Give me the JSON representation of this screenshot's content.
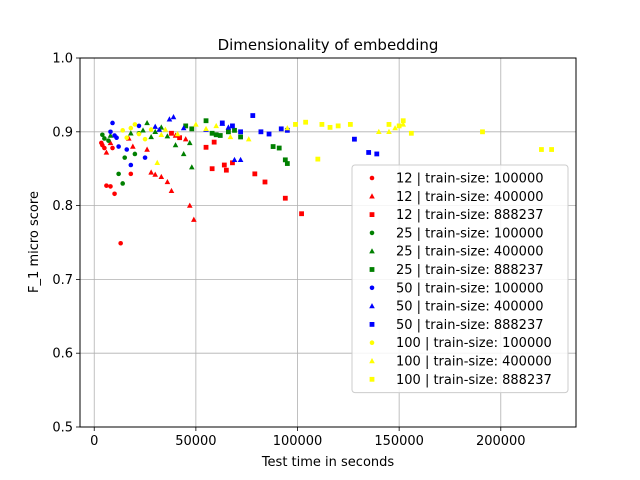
{
  "chart_data": {
    "type": "scatter",
    "title": "Dimensionality of embedding",
    "xlabel": "Test time in seconds",
    "ylabel": "F_1 micro score",
    "xlim": [
      -7000,
      237000
    ],
    "ylim": [
      0.5,
      1.0
    ],
    "xticks": [
      0,
      50000,
      100000,
      150000,
      200000
    ],
    "xtick_labels": [
      "0",
      "50000",
      "100000",
      "150000",
      "200000"
    ],
    "yticks": [
      0.5,
      0.6,
      0.7,
      0.8,
      0.9,
      1.0
    ],
    "ytick_labels": [
      "0.5",
      "0.6",
      "0.7",
      "0.8",
      "0.9",
      "1.0"
    ],
    "grid": true,
    "legend_position": "lower-right",
    "series": [
      {
        "name": "12 | train-size: 100000",
        "color": "#ff0000",
        "marker": "circle",
        "points": [
          [
            3500,
            0.885
          ],
          [
            4000,
            0.882
          ],
          [
            5000,
            0.878
          ],
          [
            6000,
            0.827
          ],
          [
            8000,
            0.826
          ],
          [
            9000,
            0.878
          ],
          [
            10000,
            0.816
          ],
          [
            13000,
            0.749
          ],
          [
            18000,
            0.843
          ]
        ]
      },
      {
        "name": "12 | train-size: 400000",
        "color": "#ff0000",
        "marker": "triangle",
        "points": [
          [
            6000,
            0.872
          ],
          [
            8000,
            0.885
          ],
          [
            17000,
            0.891
          ],
          [
            19000,
            0.88
          ],
          [
            26000,
            0.876
          ],
          [
            28000,
            0.845
          ],
          [
            30000,
            0.842
          ],
          [
            33000,
            0.839
          ],
          [
            36000,
            0.832
          ],
          [
            38000,
            0.82
          ],
          [
            40000,
            0.895
          ],
          [
            45000,
            0.89
          ],
          [
            47000,
            0.8
          ],
          [
            49000,
            0.781
          ]
        ]
      },
      {
        "name": "12 | train-size: 888237",
        "color": "#ff0000",
        "marker": "square",
        "points": [
          [
            38000,
            0.898
          ],
          [
            42000,
            0.892
          ],
          [
            55000,
            0.879
          ],
          [
            58000,
            0.85
          ],
          [
            59000,
            0.886
          ],
          [
            64000,
            0.855
          ],
          [
            65000,
            0.848
          ],
          [
            68000,
            0.858
          ],
          [
            79000,
            0.843
          ],
          [
            84000,
            0.832
          ],
          [
            94000,
            0.81
          ],
          [
            102000,
            0.789
          ]
        ]
      },
      {
        "name": "25 | train-size: 100000",
        "color": "#008000",
        "marker": "circle",
        "points": [
          [
            4000,
            0.896
          ],
          [
            5000,
            0.891
          ],
          [
            7000,
            0.888
          ],
          [
            12000,
            0.843
          ],
          [
            14000,
            0.83
          ],
          [
            15000,
            0.865
          ],
          [
            20000,
            0.87
          ],
          [
            22000,
            0.898
          ]
        ]
      },
      {
        "name": "25 | train-size: 400000",
        "color": "#008000",
        "marker": "triangle",
        "points": [
          [
            8000,
            0.895
          ],
          [
            18000,
            0.898
          ],
          [
            24000,
            0.902
          ],
          [
            26000,
            0.912
          ],
          [
            28000,
            0.893
          ],
          [
            30000,
            0.9
          ],
          [
            33000,
            0.906
          ],
          [
            36000,
            0.894
          ],
          [
            40000,
            0.882
          ],
          [
            44000,
            0.87
          ],
          [
            47000,
            0.885
          ],
          [
            48000,
            0.852
          ]
        ]
      },
      {
        "name": "25 | train-size: 888237",
        "color": "#008000",
        "marker": "square",
        "points": [
          [
            45000,
            0.908
          ],
          [
            48000,
            0.904
          ],
          [
            55000,
            0.915
          ],
          [
            58000,
            0.898
          ],
          [
            60000,
            0.896
          ],
          [
            62000,
            0.895
          ],
          [
            66000,
            0.9
          ],
          [
            69000,
            0.902
          ],
          [
            72000,
            0.893
          ],
          [
            88000,
            0.88
          ],
          [
            91000,
            0.878
          ],
          [
            94000,
            0.862
          ],
          [
            95000,
            0.857
          ]
        ]
      },
      {
        "name": "50 | train-size: 100000",
        "color": "#0000ff",
        "marker": "circle",
        "points": [
          [
            8000,
            0.9
          ],
          [
            9000,
            0.912
          ],
          [
            10000,
            0.895
          ],
          [
            11000,
            0.892
          ],
          [
            12000,
            0.88
          ],
          [
            16000,
            0.876
          ],
          [
            18000,
            0.855
          ],
          [
            22000,
            0.908
          ],
          [
            25000,
            0.865
          ]
        ]
      },
      {
        "name": "50 | train-size: 400000",
        "color": "#0000ff",
        "marker": "triangle",
        "points": [
          [
            30000,
            0.907
          ],
          [
            32000,
            0.903
          ],
          [
            37000,
            0.917
          ],
          [
            39000,
            0.92
          ],
          [
            44000,
            0.905
          ],
          [
            55000,
            0.903
          ],
          [
            63000,
            0.911
          ],
          [
            66000,
            0.906
          ],
          [
            69000,
            0.862
          ],
          [
            72000,
            0.862
          ]
        ]
      },
      {
        "name": "50 | train-size: 888237",
        "color": "#0000ff",
        "marker": "square",
        "points": [
          [
            63000,
            0.912
          ],
          [
            68000,
            0.908
          ],
          [
            72000,
            0.9
          ],
          [
            78000,
            0.922
          ],
          [
            82000,
            0.9
          ],
          [
            86000,
            0.897
          ],
          [
            92000,
            0.904
          ],
          [
            95000,
            0.902
          ],
          [
            128000,
            0.89
          ],
          [
            135000,
            0.872
          ],
          [
            139000,
            0.87
          ]
        ]
      },
      {
        "name": "100 | train-size: 100000",
        "color": "#ffff00",
        "marker": "circle",
        "points": [
          [
            14000,
            0.902
          ],
          [
            16000,
            0.892
          ],
          [
            18000,
            0.905
          ],
          [
            20000,
            0.91
          ],
          [
            22000,
            0.897
          ],
          [
            25000,
            0.89
          ],
          [
            28000,
            0.903
          ]
        ]
      },
      {
        "name": "100 | train-size: 400000",
        "color": "#ffff00",
        "marker": "triangle",
        "points": [
          [
            31000,
            0.858
          ],
          [
            33000,
            0.896
          ],
          [
            35000,
            0.903
          ],
          [
            41000,
            0.897
          ],
          [
            50000,
            0.91
          ],
          [
            55000,
            0.904
          ],
          [
            60000,
            0.908
          ],
          [
            67000,
            0.893
          ],
          [
            76000,
            0.89
          ],
          [
            95000,
            0.905
          ],
          [
            140000,
            0.9
          ],
          [
            145000,
            0.9
          ],
          [
            148000,
            0.905
          ],
          [
            152000,
            0.91
          ]
        ]
      },
      {
        "name": "100 | train-size: 888237",
        "color": "#ffff00",
        "marker": "square",
        "points": [
          [
            99000,
            0.91
          ],
          [
            104000,
            0.913
          ],
          [
            110000,
            0.863
          ],
          [
            112000,
            0.91
          ],
          [
            116000,
            0.906
          ],
          [
            120000,
            0.908
          ],
          [
            126000,
            0.91
          ],
          [
            145000,
            0.91
          ],
          [
            150000,
            0.908
          ],
          [
            152000,
            0.915
          ],
          [
            156000,
            0.898
          ],
          [
            191000,
            0.9
          ],
          [
            220000,
            0.876
          ],
          [
            225000,
            0.876
          ]
        ]
      }
    ]
  }
}
